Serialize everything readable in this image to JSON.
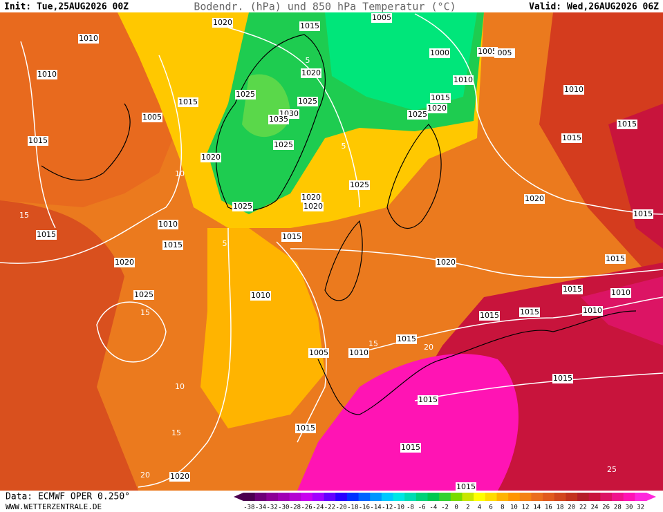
{
  "header": {
    "init": "Init: Tue,25AUG2026 00Z",
    "title": "Bodendr. (hPa) und 850 hPa Temperatur (°C)",
    "valid": "Valid: Wed,26AUG2026 06Z"
  },
  "footer": {
    "data": "Data: ECMWF OPER 0.250°",
    "site": "WWW.WETTERZENTRALE.DE"
  },
  "isobar_labels": [
    "1020",
    "1015",
    "1005",
    "1010",
    "1010",
    "1000",
    "1005",
    "005",
    "1020",
    "1010",
    "1010",
    "1025",
    "1015",
    "1025",
    "1015",
    "1030",
    "1020",
    "1025",
    "1035",
    "1005",
    "1015",
    "1015",
    "1025",
    "1015",
    "1020",
    "1025",
    "1020",
    "1020",
    "1020",
    "1025",
    "1015",
    "1010",
    "1015",
    "1015",
    "1015",
    "1020",
    "1020",
    "1015",
    "1015",
    "1010",
    "1025",
    "1010",
    "1015",
    "1010",
    "1015",
    "1015",
    "1005",
    "1010",
    "1015",
    "1015",
    "1015",
    "1015",
    "1020",
    "1015"
  ],
  "temperature_labels": [
    "5",
    "5",
    "10",
    "15",
    "15",
    "10",
    "15",
    "20",
    "25",
    "20",
    "15",
    "5"
  ],
  "colorbar": {
    "ticks": [
      -38,
      -34,
      -32,
      -30,
      -28,
      -26,
      -24,
      -22,
      -20,
      -18,
      -16,
      -14,
      -12,
      -10,
      -8,
      -6,
      -4,
      -2,
      0,
      2,
      4,
      6,
      8,
      10,
      12,
      14,
      16,
      18,
      20,
      22,
      24,
      26,
      28,
      30,
      32
    ],
    "colors": [
      "#4b0050",
      "#6e0078",
      "#8c0096",
      "#a000b4",
      "#b400d2",
      "#c800f0",
      "#a000ff",
      "#6400ff",
      "#2800ff",
      "#0032ff",
      "#0064ff",
      "#0096ff",
      "#00c8ff",
      "#00e6e6",
      "#00dcb4",
      "#00d278",
      "#00c850",
      "#32d232",
      "#78dc00",
      "#c8e600",
      "#ffff00",
      "#ffdc00",
      "#ffb400",
      "#ff9600",
      "#f58214",
      "#eb6e1e",
      "#e15a1e",
      "#d2461e",
      "#c3321e",
      "#b41e28",
      "#c8143c",
      "#dc1464",
      "#f0148c",
      "#ff14b4",
      "#ff28dc"
    ]
  }
}
